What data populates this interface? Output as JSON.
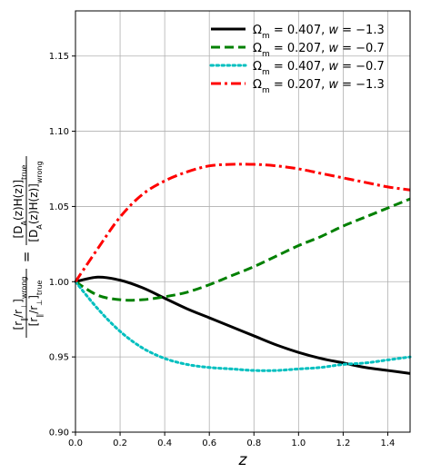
{
  "chart_data": {
    "type": "line",
    "xlabel": "z",
    "ylabel": {
      "left_num": "[r∥/r⊥]wrong",
      "left_den": "[r∥/r⊥]true",
      "equals": "=",
      "right_num": "[DA(z)H(z)]true",
      "right_den": "[DA(z)H(z)]wrong"
    },
    "xlim": [
      0.0,
      1.5
    ],
    "ylim": [
      0.9,
      1.18
    ],
    "xticks": [
      "0.0",
      "0.2",
      "0.4",
      "0.6",
      "0.8",
      "1.0",
      "1.2",
      "1.4"
    ],
    "xtick_values": [
      0.0,
      0.2,
      0.4,
      0.6,
      0.8,
      1.0,
      1.2,
      1.4
    ],
    "yticks": [
      "0.90",
      "0.95",
      "1.00",
      "1.05",
      "1.10",
      "1.15"
    ],
    "ytick_values": [
      0.9,
      0.95,
      1.0,
      1.05,
      1.1,
      1.15
    ],
    "grid": true,
    "legend_position": "top-right",
    "x": [
      0.0,
      0.1,
      0.2,
      0.3,
      0.4,
      0.5,
      0.6,
      0.7,
      0.8,
      0.9,
      1.0,
      1.1,
      1.2,
      1.3,
      1.4,
      1.5
    ],
    "series": [
      {
        "name": "Ωm = 0.407,  w = −1.3",
        "om": "0.407",
        "w": "−1.3",
        "color": "#000000",
        "style": "solid",
        "values": [
          1.0,
          1.003,
          1.001,
          0.996,
          0.989,
          0.982,
          0.976,
          0.97,
          0.964,
          0.958,
          0.953,
          0.949,
          0.946,
          0.943,
          0.941,
          0.939
        ]
      },
      {
        "name": "Ωm = 0.207,  w = −0.7",
        "om": "0.207",
        "w": "−0.7",
        "color": "#008000",
        "style": "dashed",
        "values": [
          1.0,
          0.991,
          0.988,
          0.988,
          0.99,
          0.993,
          0.998,
          1.004,
          1.01,
          1.017,
          1.024,
          1.03,
          1.037,
          1.043,
          1.049,
          1.055
        ]
      },
      {
        "name": "Ωm = 0.407,  w = −0.7",
        "om": "0.407",
        "w": "−0.7",
        "color": "#00bfbf",
        "style": "dotted",
        "values": [
          1.0,
          0.982,
          0.967,
          0.956,
          0.949,
          0.945,
          0.943,
          0.942,
          0.941,
          0.941,
          0.942,
          0.943,
          0.945,
          0.946,
          0.948,
          0.95
        ]
      },
      {
        "name": "Ωm = 0.207,  w = −1.3",
        "om": "0.207",
        "w": "−1.3",
        "color": "#ff0000",
        "style": "dashdot",
        "values": [
          1.0,
          1.022,
          1.043,
          1.058,
          1.067,
          1.073,
          1.077,
          1.078,
          1.078,
          1.077,
          1.075,
          1.072,
          1.069,
          1.066,
          1.063,
          1.061
        ]
      }
    ]
  }
}
